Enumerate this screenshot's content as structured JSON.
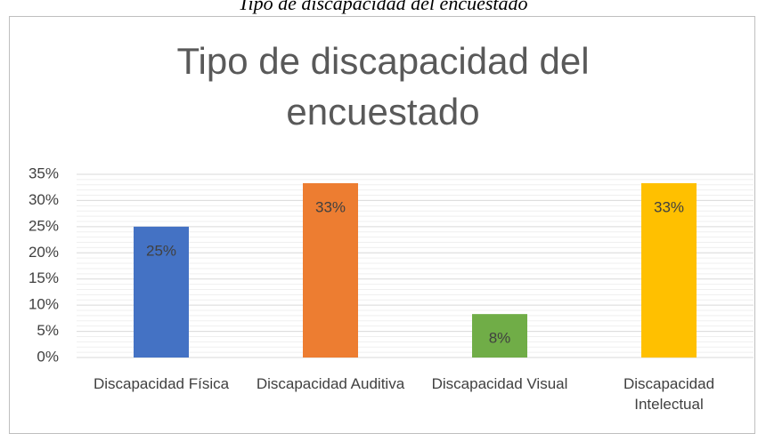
{
  "chart_data": {
    "type": "bar",
    "caption": "Tipo de discapacidad del encuestado",
    "title": "Tipo de discapacidad del encuestado",
    "categories": [
      "Discapacidad Física",
      "Discapacidad Auditiva",
      "Discapacidad Visual",
      "Discapacidad Intelectual"
    ],
    "values": [
      25,
      33.3,
      8.3,
      33.3
    ],
    "value_labels": [
      "25%",
      "33%",
      "8%",
      "33%"
    ],
    "colors": [
      "#4472c4",
      "#ed7d31",
      "#70ad47",
      "#ffc000"
    ],
    "ylim": [
      0,
      35
    ],
    "yticks": [
      {
        "value": 0,
        "label": "0%"
      },
      {
        "value": 5,
        "label": "5%"
      },
      {
        "value": 10,
        "label": "10%"
      },
      {
        "value": 15,
        "label": "15%"
      },
      {
        "value": 20,
        "label": "20%"
      },
      {
        "value": 25,
        "label": "25%"
      },
      {
        "value": 30,
        "label": "30%"
      },
      {
        "value": 35,
        "label": "35%"
      }
    ],
    "grid": true
  }
}
